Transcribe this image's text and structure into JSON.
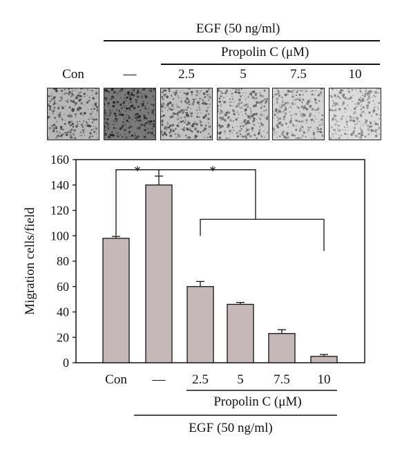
{
  "top_panel": {
    "egf_label": "EGF (50 ng/ml)",
    "propolin_label": "Propolin C (μM)",
    "column_labels": [
      "Con",
      "—",
      "2.5",
      "5",
      "7.5",
      "10"
    ],
    "thumb_images": [
      {
        "tone": "#b8b8b8",
        "dots": "#3a3a3a"
      },
      {
        "tone": "#7a7a7a",
        "dots": "#1c1c1c"
      },
      {
        "tone": "#c2c2c2",
        "dots": "#444444"
      },
      {
        "tone": "#cdcdcd",
        "dots": "#555555"
      },
      {
        "tone": "#d4d4d4",
        "dots": "#666666"
      },
      {
        "tone": "#dcdcdc",
        "dots": "#777777"
      }
    ]
  },
  "chart_data": {
    "type": "bar",
    "categories": [
      "Con",
      "—",
      "2.5",
      "5",
      "7.5",
      "10"
    ],
    "values": [
      98,
      140,
      60,
      46,
      23,
      5
    ],
    "errors": [
      1.5,
      7,
      4,
      1.5,
      3,
      1.5
    ],
    "ylabel": "Migration cells/field",
    "xlabel": "",
    "ylim": [
      0,
      160
    ],
    "yticks": [
      0,
      20,
      40,
      60,
      80,
      100,
      120,
      140,
      160
    ],
    "bar_color": "#c4b8b8",
    "significance": [
      {
        "between": [
          "Con",
          "—"
        ],
        "label": "*"
      },
      {
        "between": [
          "—",
          "2.5–10"
        ],
        "label": "*"
      }
    ],
    "group_labels": {
      "propolin": "Propolin C (μM)",
      "egf": "EGF (50 ng/ml)"
    },
    "grid": false
  }
}
